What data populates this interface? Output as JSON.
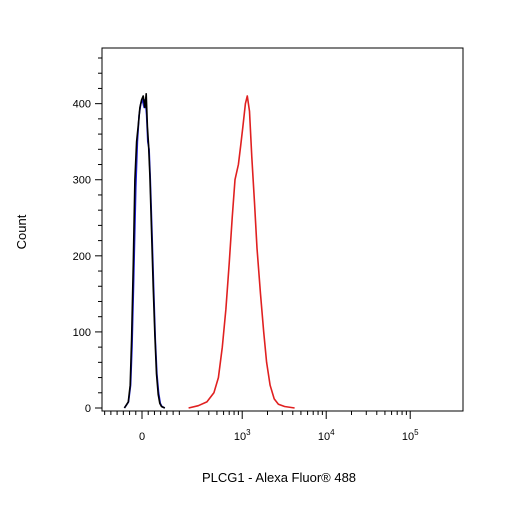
{
  "chart_data": {
    "type": "line",
    "title": "",
    "xlabel": "PLCG1 - Alexa Fluor® 488",
    "ylabel": "Count",
    "x_scale": "biexponential",
    "x_ticks": [
      {
        "value": 0,
        "base": "0",
        "exp": ""
      },
      {
        "value": 1000,
        "base": "10",
        "exp": "3"
      },
      {
        "value": 10000,
        "base": "10",
        "exp": "4"
      },
      {
        "value": 100000,
        "base": "10",
        "exp": "5"
      }
    ],
    "y_ticks": [
      0,
      100,
      200,
      300,
      400
    ],
    "ylim": [
      0,
      460
    ],
    "grid": false,
    "legend": "none",
    "series": [
      {
        "color": "#1f1fd6",
        "points": [
          [
            -85,
            0
          ],
          [
            -65,
            8
          ],
          [
            -55,
            30
          ],
          [
            -48,
            80
          ],
          [
            -40,
            170
          ],
          [
            -30,
            290
          ],
          [
            -22,
            350
          ],
          [
            -14,
            385
          ],
          [
            -6,
            400
          ],
          [
            2,
            405
          ],
          [
            10,
            395
          ],
          [
            16,
            405
          ],
          [
            22,
            385
          ],
          [
            28,
            350
          ],
          [
            34,
            340
          ],
          [
            40,
            300
          ],
          [
            48,
            230
          ],
          [
            56,
            160
          ],
          [
            64,
            90
          ],
          [
            72,
            45
          ],
          [
            80,
            20
          ],
          [
            88,
            6
          ],
          [
            96,
            2
          ],
          [
            110,
            0
          ]
        ]
      },
      {
        "color": "#000000",
        "points": [
          [
            -85,
            0
          ],
          [
            -66,
            8
          ],
          [
            -57,
            30
          ],
          [
            -50,
            90
          ],
          [
            -42,
            190
          ],
          [
            -34,
            300
          ],
          [
            -26,
            350
          ],
          [
            -18,
            372
          ],
          [
            -10,
            395
          ],
          [
            -2,
            405
          ],
          [
            6,
            410
          ],
          [
            14,
            395
          ],
          [
            20,
            413
          ],
          [
            26,
            370
          ],
          [
            32,
            345
          ],
          [
            38,
            305
          ],
          [
            46,
            235
          ],
          [
            54,
            160
          ],
          [
            62,
            95
          ],
          [
            70,
            45
          ],
          [
            78,
            18
          ],
          [
            86,
            6
          ],
          [
            94,
            2
          ],
          [
            110,
            0
          ]
        ]
      },
      {
        "color": "#e02020",
        "points": [
          [
            230,
            0
          ],
          [
            300,
            3
          ],
          [
            380,
            8
          ],
          [
            460,
            20
          ],
          [
            520,
            40
          ],
          [
            580,
            80
          ],
          [
            640,
            130
          ],
          [
            700,
            190
          ],
          [
            760,
            250
          ],
          [
            820,
            300
          ],
          [
            900,
            320
          ],
          [
            960,
            345
          ],
          [
            1020,
            370
          ],
          [
            1090,
            400
          ],
          [
            1150,
            410
          ],
          [
            1220,
            390
          ],
          [
            1300,
            330
          ],
          [
            1400,
            270
          ],
          [
            1500,
            210
          ],
          [
            1650,
            150
          ],
          [
            1800,
            100
          ],
          [
            1950,
            60
          ],
          [
            2150,
            30
          ],
          [
            2400,
            12
          ],
          [
            2700,
            5
          ],
          [
            3200,
            2
          ],
          [
            4200,
            0
          ]
        ]
      }
    ]
  }
}
